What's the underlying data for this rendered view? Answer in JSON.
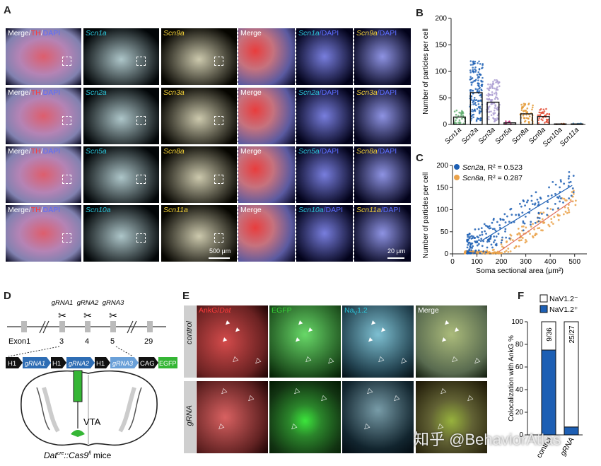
{
  "panel_labels": {
    "A": "A",
    "B": "B",
    "C": "C",
    "D": "D",
    "E": "E",
    "F": "F"
  },
  "panelA": {
    "rows": [
      {
        "merge": "Merge/",
        "th": "TH",
        "slash": "/",
        "dapi": "DAPI",
        "g1": "Scn1a",
        "g2": "Scn9a",
        "z_merge": "Merge",
        "z1": "Scn1a",
        "z1_dapi": "/DAPI",
        "z2": "Scn9a",
        "z2_dapi": "/DAPI"
      },
      {
        "merge": "Merge/",
        "th": "TH",
        "slash": "/",
        "dapi": "DAPI",
        "g1": "Scn2a",
        "g2": "Scn3a",
        "z_merge": "Merge",
        "z1": "Scn2a",
        "z1_dapi": "/DAPI",
        "z2": "Scn3a",
        "z2_dapi": "/DAPI"
      },
      {
        "merge": "Merge/",
        "th": "TH",
        "slash": "/",
        "dapi": "DAPI",
        "g1": "Scn5a",
        "g2": "Scn8a",
        "z_merge": "Merge",
        "z1": "Scn5a",
        "z1_dapi": "/DAPI",
        "z2": "Scn8a",
        "z2_dapi": "/DAPI"
      },
      {
        "merge": "Merge/",
        "th": "TH",
        "slash": "/",
        "dapi": "DAPI",
        "g1": "Scn10a",
        "g2": "Scn11a",
        "z_merge": "Merge",
        "z1": "Scn10a",
        "z1_dapi": "/DAPI",
        "z2": "Scn11a",
        "z2_dapi": "/DAPI"
      }
    ],
    "scale_low": "500 μm",
    "scale_high": "20 μm"
  },
  "chart_data": [
    {
      "type": "bar",
      "panel": "B",
      "ylabel": "Number of particles per cell",
      "categories": [
        "Scn1a",
        "Scn2a",
        "Scn3a",
        "Scn5a",
        "Scn8a",
        "Scn9a",
        "Scn10a",
        "Scn11a"
      ],
      "values": [
        14,
        60,
        42,
        3,
        20,
        15,
        1,
        1
      ],
      "colors": [
        "#5fae6e",
        "#1d5fb4",
        "#a898cf",
        "#c0287a",
        "#e2962e",
        "#e2452c",
        "#c85a1e",
        "#5aa2d8"
      ],
      "ylim": [
        0,
        200
      ],
      "yticks": [
        0,
        50,
        100,
        150,
        200
      ]
    },
    {
      "type": "scatter",
      "panel": "C",
      "xlabel": "Soma sectional area (μm²)",
      "ylabel": "Number of particles per cell",
      "xlim": [
        0,
        550
      ],
      "ylim": [
        0,
        200
      ],
      "xticks": [
        0,
        100,
        200,
        300,
        400,
        500
      ],
      "yticks": [
        0,
        50,
        100,
        150,
        200
      ],
      "series": [
        {
          "name": "Scn2a",
          "r2_text": ", R² = 0.523",
          "color": "#1d5fb4",
          "line": [
            [
              120,
              30
            ],
            [
              490,
              155
            ]
          ]
        },
        {
          "name": "Scn8a",
          "r2_text": ", R² = 0.287",
          "color": "#eaa24a",
          "line": [
            [
              190,
              5
            ],
            [
              490,
              120
            ]
          ]
        }
      ]
    },
    {
      "type": "bar",
      "panel": "F",
      "ylabel": "Colocalization with AnkG %",
      "categories": [
        "control",
        "gRNA"
      ],
      "stacked_positive": [
        75,
        7
      ],
      "stacked_negative": [
        25,
        93
      ],
      "bar_labels": [
        "9/36",
        "25/27"
      ],
      "legend": [
        "NaV1.2⁻",
        "NaV1.2⁺"
      ],
      "colors": {
        "positive": "#1d5fb4",
        "negative": "#ffffff"
      },
      "ylim": [
        0,
        100
      ],
      "yticks": [
        0,
        20,
        40,
        60,
        80,
        100
      ]
    }
  ],
  "panelD": {
    "grnas": [
      "gRNA1",
      "gRNA2",
      "gRNA3"
    ],
    "exons": [
      "Exon1",
      "3",
      "4",
      "5",
      "29"
    ],
    "construct": [
      "H1",
      "gRNA1",
      "H1",
      "gRNA2",
      "H1",
      "gRNA3",
      "CAG",
      "EGFP"
    ],
    "vta": "VTA",
    "mouse_line": "Dat",
    "mouse_sup1": "cre",
    "mouse_mid": "::Cas9",
    "mouse_sup2": "fl",
    "mouse_suffix": " mice"
  },
  "panelE": {
    "columns": {
      "ankg": "AnkG/",
      "dat": "Dat",
      "egfp": "EGFP",
      "nav": "Na",
      "nav_sub": "V",
      "nav_rest": "1.2",
      "merge": "Merge"
    },
    "rows": [
      "control",
      "gRNA"
    ]
  },
  "watermark": "知乎 @BehaviorAtlas"
}
